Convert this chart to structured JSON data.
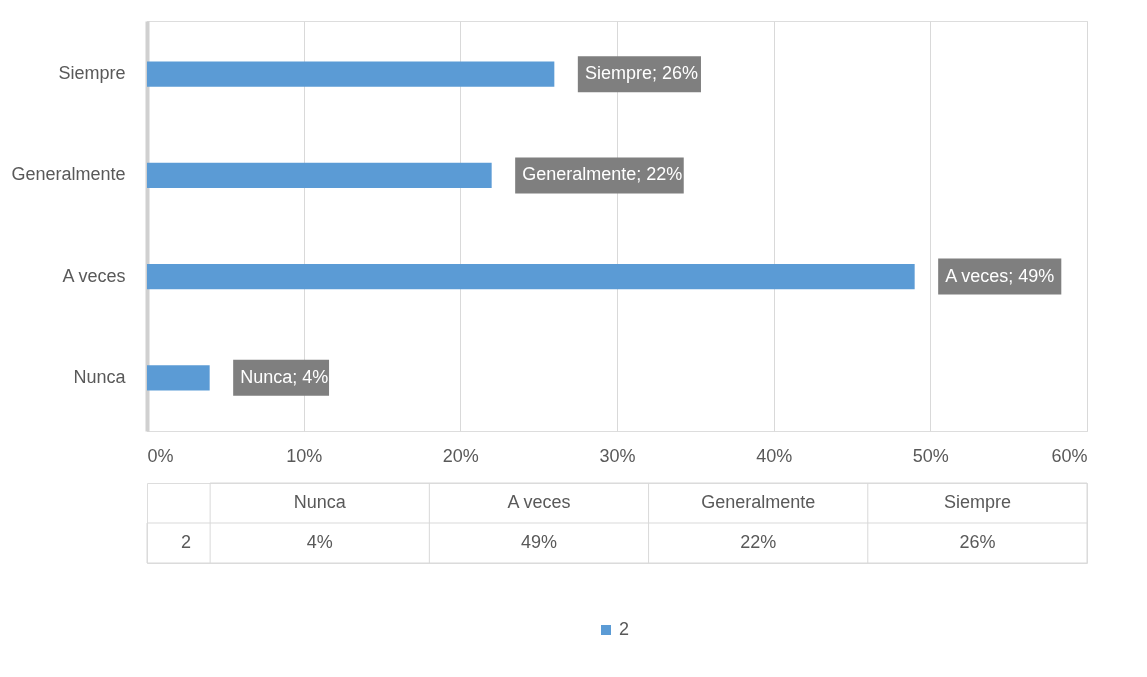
{
  "chart_data": {
    "type": "bar",
    "orientation": "horizontal",
    "categories": [
      "Siempre",
      "Generalmente",
      "A veces",
      "Nunca"
    ],
    "series": [
      {
        "name": "2",
        "color": "#5b9bd5",
        "values": [
          26,
          22,
          49,
          4
        ],
        "value_labels": [
          "Siempre; 26%",
          "Generalmente; 22%",
          "A veces; 49%",
          "Nunca; 4%"
        ]
      }
    ],
    "xlim": [
      0,
      60
    ],
    "xticks": [
      {
        "value": 0,
        "label": "0%"
      },
      {
        "value": 10,
        "label": "10%"
      },
      {
        "value": 20,
        "label": "20%"
      },
      {
        "value": 30,
        "label": "30%"
      },
      {
        "value": 40,
        "label": "40%"
      },
      {
        "value": 50,
        "label": "50%"
      },
      {
        "value": 60,
        "label": "60%"
      }
    ],
    "grid": "x",
    "legend": "bottom",
    "annotations": [
      "26%",
      "22%",
      "49%",
      "4%"
    ]
  }
}
